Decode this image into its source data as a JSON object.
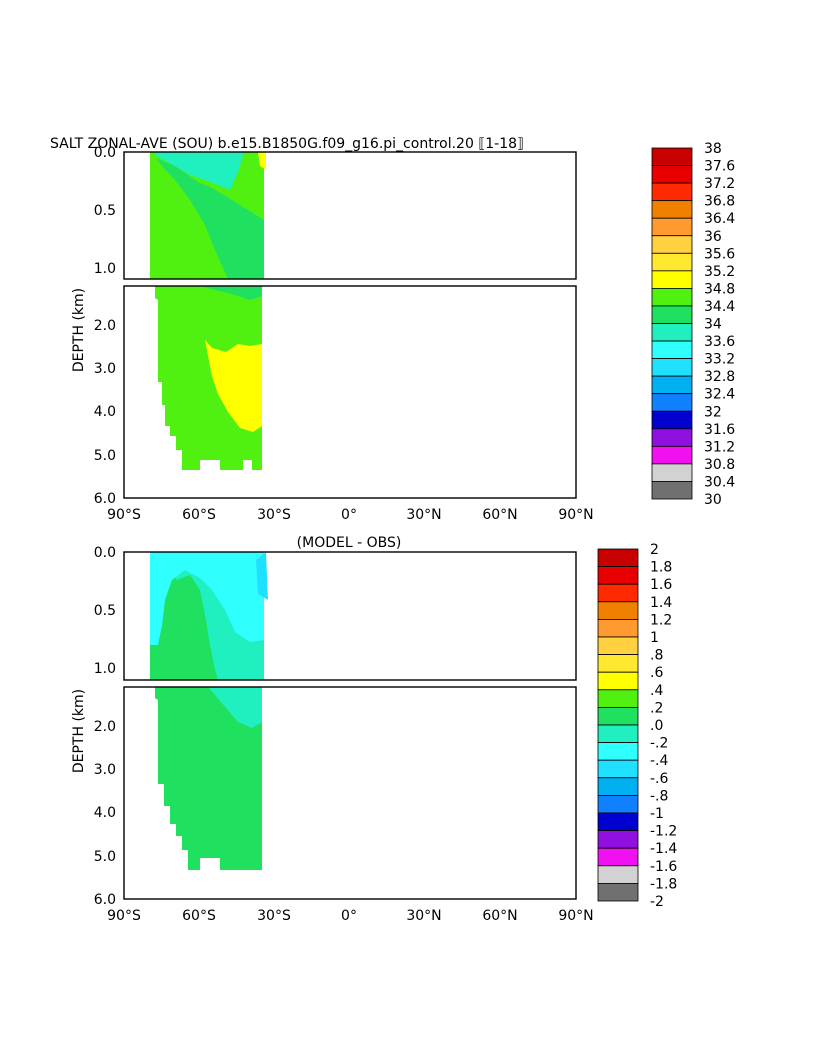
{
  "chart_data": [
    {
      "type": "heatmap",
      "title": "SALT ZONAL-AVE (SOU) b.e15.B1850G.f09_g16.pi_control.20 ⟦1-18⟧",
      "ylabel": "DEPTH (km)",
      "x_ticks": [
        "90°S",
        "60°S",
        "30°S",
        "0°",
        "30°N",
        "60°N",
        "90°N"
      ],
      "y_ticks_upper": [
        "0.0",
        "0.5",
        "1.0"
      ],
      "y_ticks_lower": [
        "2.0",
        "3.0",
        "4.0",
        "5.0",
        "6.0"
      ],
      "xlim": [
        -90,
        90
      ],
      "ylim_upper_km": [
        0,
        1.1
      ],
      "ylim_lower_km": [
        1.1,
        6.0
      ],
      "colorbar_labels": [
        "38",
        "37.6",
        "37.2",
        "36.8",
        "36.4",
        "36",
        "35.6",
        "35.2",
        "34.8",
        "34.4",
        "34",
        "33.6",
        "33.2",
        "32.8",
        "32.4",
        "32",
        "31.6",
        "31.2",
        "30.8",
        "30.4",
        "30"
      ],
      "colorbar_colors": [
        "#c80000",
        "#e80000",
        "#ff2a00",
        "#f08000",
        "#ff9a30",
        "#ffb040",
        "#ffd040",
        "#ffe830",
        "#ffff00",
        "#50f010",
        "#20e060",
        "#20f0c0",
        "#30ffff",
        "#20e0ff",
        "#00b0f0",
        "#1080ff",
        "#0028ff",
        "#0000d0",
        "#9010e0",
        "#f010f0",
        "#d2d2d2",
        "#707070"
      ],
      "regions": [
        {
          "level": "34.4",
          "color": "#50f010",
          "shape": "base",
          "description": "ocean section 78S-35S"
        },
        {
          "level": "34",
          "color": "#20e060",
          "shape": "upper-wedge"
        },
        {
          "level": "33.6",
          "color": "#20f0c0",
          "shape": "surface-patch"
        },
        {
          "level": "34.8",
          "color": "#ffff00",
          "shape": "deep-core"
        }
      ]
    },
    {
      "type": "heatmap",
      "title": "(MODEL - OBS)",
      "ylabel": "DEPTH (km)",
      "x_ticks": [
        "90°S",
        "60°S",
        "30°S",
        "0°",
        "30°N",
        "60°N",
        "90°N"
      ],
      "y_ticks_upper": [
        "0.0",
        "0.5",
        "1.0"
      ],
      "y_ticks_lower": [
        "2.0",
        "3.0",
        "4.0",
        "5.0",
        "6.0"
      ],
      "xlim": [
        -90,
        90
      ],
      "colorbar_labels": [
        "2",
        "1.8",
        "1.6",
        "1.4",
        "1.2",
        "1",
        ".8",
        ".6",
        ".4",
        ".2",
        ".0",
        "-.2",
        "-.4",
        "-.6",
        "-.8",
        "-1",
        "-1.2",
        "-1.4",
        "-1.6",
        "-1.8",
        "-2"
      ],
      "colorbar_colors": [
        "#c80000",
        "#e80000",
        "#ff2a00",
        "#f08000",
        "#ff9a30",
        "#ffb040",
        "#ffd040",
        "#ffe830",
        "#ffff00",
        "#50f010",
        "#20e060",
        "#20f0c0",
        "#30ffff",
        "#20e0ff",
        "#00b0f0",
        "#1080ff",
        "#0028ff",
        "#0000d0",
        "#9010e0",
        "#f010f0",
        "#d2d2d2",
        "#707070"
      ],
      "regions": [
        {
          "level": ".0",
          "color": "#20e060",
          "shape": "base"
        },
        {
          "level": "-.2",
          "color": "#20f0c0",
          "shape": "middle-wedge"
        },
        {
          "level": "-.4",
          "color": "#30ffff",
          "shape": "surface-band"
        },
        {
          "level": "-.6",
          "color": "#20e0ff",
          "shape": "edge-patch"
        }
      ]
    }
  ]
}
